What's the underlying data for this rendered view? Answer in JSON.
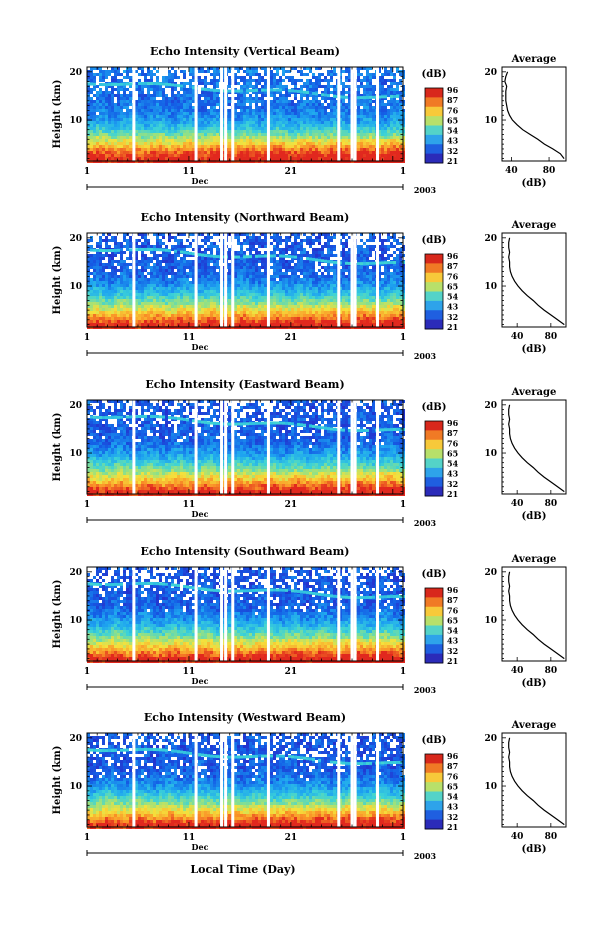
{
  "chart_data": [
    {
      "type": "heatmap",
      "title": "Echo Intensity (Vertical Beam)",
      "ylabel": "Height (km)",
      "xlabel": "",
      "x_ticks": [
        "1",
        "11",
        "21",
        "1"
      ],
      "x_month": "Dec",
      "year": "2003",
      "y_ticks": [
        "10",
        "20"
      ],
      "ylim": [
        1.5,
        21
      ],
      "xlim": [
        1,
        32
      ],
      "colorbar": {
        "unit": "(dB)",
        "levels": [
          "96",
          "87",
          "76",
          "65",
          "54",
          "43",
          "32",
          "21"
        ]
      },
      "gaps_day": [
        5.6,
        11.7,
        14.2,
        14.6,
        15.3,
        18.8,
        25.7,
        27.0,
        27.3,
        29.5
      ],
      "average_profile": {
        "title": "Average",
        "xlabel": "(dB)",
        "x_ticks": [
          "40",
          "80"
        ],
        "x_values": [
          40,
          80
        ],
        "y_ticks": [
          "10",
          "20"
        ],
        "xlim": [
          30,
          98
        ],
        "ylim": [
          1.5,
          21
        ],
        "height_km": [
          2,
          3,
          4,
          5,
          6,
          7,
          8,
          9,
          10,
          11,
          12,
          13,
          14,
          15,
          16,
          17,
          18,
          19,
          20
        ],
        "db": [
          96,
          92,
          84,
          75,
          68,
          60,
          52,
          46,
          41,
          38,
          36,
          35,
          34,
          34,
          34,
          35,
          33,
          34,
          36
        ]
      }
    },
    {
      "type": "heatmap",
      "title": "Echo Intensity (Northward Beam)",
      "ylabel": "Height (km)",
      "xlabel": "",
      "x_ticks": [
        "1",
        "11",
        "21",
        "1"
      ],
      "x_month": "Dec",
      "year": "2003",
      "y_ticks": [
        "10",
        "20"
      ],
      "ylim": [
        1.5,
        21
      ],
      "xlim": [
        1,
        32
      ],
      "colorbar": {
        "unit": "(dB)",
        "levels": [
          "96",
          "87",
          "76",
          "65",
          "54",
          "43",
          "32",
          "21"
        ]
      },
      "gaps_day": [
        5.6,
        11.7,
        14.2,
        14.6,
        15.3,
        18.8,
        25.7,
        27.0,
        27.3,
        29.5
      ],
      "average_profile": {
        "title": "Average",
        "xlabel": "(dB)",
        "x_ticks": [
          "40",
          "80"
        ],
        "x_values": [
          40,
          80
        ],
        "y_ticks": [
          "10",
          "20"
        ],
        "xlim": [
          22,
          98
        ],
        "ylim": [
          1.5,
          21
        ],
        "height_km": [
          2,
          3,
          4,
          5,
          6,
          7,
          8,
          9,
          10,
          11,
          12,
          13,
          14,
          15,
          16,
          17,
          18,
          19,
          20
        ],
        "db": [
          96,
          88,
          80,
          72,
          65,
          59,
          52,
          46,
          41,
          37,
          34,
          32,
          31,
          31,
          30,
          31,
          30,
          30,
          31
        ]
      }
    },
    {
      "type": "heatmap",
      "title": "Echo Intensity (Eastward Beam)",
      "ylabel": "Height (km)",
      "xlabel": "",
      "x_ticks": [
        "1",
        "11",
        "21",
        "1"
      ],
      "x_month": "Dec",
      "year": "2003",
      "y_ticks": [
        "10",
        "20"
      ],
      "ylim": [
        1.5,
        21
      ],
      "xlim": [
        1,
        32
      ],
      "colorbar": {
        "unit": "(dB)",
        "levels": [
          "96",
          "87",
          "76",
          "65",
          "54",
          "43",
          "32",
          "21"
        ]
      },
      "gaps_day": [
        5.6,
        11.7,
        14.2,
        14.6,
        15.3,
        18.8,
        25.7,
        27.0,
        27.3,
        29.5
      ],
      "average_profile": {
        "title": "Average",
        "xlabel": "(dB)",
        "x_ticks": [
          "40",
          "80"
        ],
        "x_values": [
          40,
          80
        ],
        "y_ticks": [
          "10",
          "20"
        ],
        "xlim": [
          22,
          98
        ],
        "ylim": [
          1.5,
          21
        ],
        "height_km": [
          2,
          3,
          4,
          5,
          6,
          7,
          8,
          9,
          10,
          11,
          12,
          13,
          14,
          15,
          16,
          17,
          18,
          19,
          20
        ],
        "db": [
          96,
          88,
          80,
          72,
          65,
          59,
          52,
          46,
          41,
          37,
          34,
          32,
          31,
          31,
          30,
          31,
          30,
          30,
          31
        ]
      }
    },
    {
      "type": "heatmap",
      "title": "Echo Intensity (Southward Beam)",
      "ylabel": "Height (km)",
      "xlabel": "",
      "x_ticks": [
        "1",
        "11",
        "21",
        "1"
      ],
      "x_month": "Dec",
      "year": "2003",
      "y_ticks": [
        "10",
        "20"
      ],
      "ylim": [
        1.5,
        21
      ],
      "xlim": [
        1,
        32
      ],
      "colorbar": {
        "unit": "(dB)",
        "levels": [
          "96",
          "87",
          "76",
          "65",
          "54",
          "43",
          "32",
          "21"
        ]
      },
      "gaps_day": [
        5.6,
        11.7,
        14.2,
        14.6,
        15.3,
        18.8,
        25.7,
        27.0,
        27.3,
        29.5
      ],
      "average_profile": {
        "title": "Average",
        "xlabel": "(dB)",
        "x_ticks": [
          "40",
          "80"
        ],
        "x_values": [
          40,
          80
        ],
        "y_ticks": [
          "10",
          "20"
        ],
        "xlim": [
          22,
          98
        ],
        "ylim": [
          1.5,
          21
        ],
        "height_km": [
          2,
          3,
          4,
          5,
          6,
          7,
          8,
          9,
          10,
          11,
          12,
          13,
          14,
          15,
          16,
          17,
          18,
          19,
          20
        ],
        "db": [
          96,
          88,
          80,
          72,
          65,
          59,
          52,
          46,
          41,
          37,
          34,
          32,
          31,
          31,
          30,
          31,
          30,
          30,
          31
        ]
      }
    },
    {
      "type": "heatmap",
      "title": "Echo Intensity (Westward Beam)",
      "ylabel": "Height (km)",
      "xlabel": "Local Time (Day)",
      "x_ticks": [
        "1",
        "11",
        "21",
        "1"
      ],
      "x_month": "Dec",
      "year": "2003",
      "y_ticks": [
        "10",
        "20"
      ],
      "ylim": [
        1.5,
        21
      ],
      "xlim": [
        1,
        32
      ],
      "colorbar": {
        "unit": "(dB)",
        "levels": [
          "96",
          "87",
          "76",
          "65",
          "54",
          "43",
          "32",
          "21"
        ]
      },
      "gaps_day": [
        5.6,
        11.7,
        14.2,
        14.6,
        15.3,
        18.8,
        25.7,
        27.0,
        27.3,
        29.5
      ],
      "average_profile": {
        "title": "Average",
        "xlabel": "(dB)",
        "x_ticks": [
          "40",
          "80"
        ],
        "x_values": [
          40,
          80
        ],
        "y_ticks": [
          "10",
          "20"
        ],
        "xlim": [
          22,
          98
        ],
        "ylim": [
          1.5,
          21
        ],
        "height_km": [
          2,
          3,
          4,
          5,
          6,
          7,
          8,
          9,
          10,
          11,
          12,
          13,
          14,
          15,
          16,
          17,
          18,
          19,
          20
        ],
        "db": [
          96,
          88,
          80,
          72,
          65,
          59,
          52,
          46,
          41,
          37,
          34,
          32,
          31,
          31,
          30,
          31,
          30,
          30,
          31
        ]
      }
    }
  ]
}
